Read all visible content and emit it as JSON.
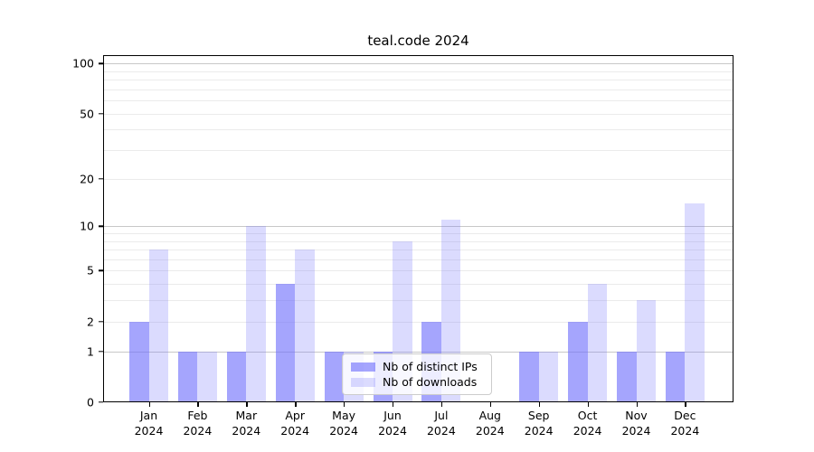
{
  "title": "teal.code 2024",
  "y_axis": {
    "tick_labels": [
      "0",
      "1",
      "2",
      "5",
      "10",
      "20",
      "50",
      "100"
    ],
    "tick_values": [
      0,
      1,
      2,
      5,
      10,
      20,
      50,
      100
    ]
  },
  "months": [
    {
      "label": "Jan",
      "year": "2024"
    },
    {
      "label": "Feb",
      "year": "2024"
    },
    {
      "label": "Mar",
      "year": "2024"
    },
    {
      "label": "Apr",
      "year": "2024"
    },
    {
      "label": "May",
      "year": "2024"
    },
    {
      "label": "Jun",
      "year": "2024"
    },
    {
      "label": "Jul",
      "year": "2024"
    },
    {
      "label": "Aug",
      "year": "2024"
    },
    {
      "label": "Sep",
      "year": "2024"
    },
    {
      "label": "Oct",
      "year": "2024"
    },
    {
      "label": "Nov",
      "year": "2024"
    },
    {
      "label": "Dec",
      "year": "2024"
    }
  ],
  "legend": {
    "items": [
      {
        "label": "Nb of distinct IPs"
      },
      {
        "label": "Nb of downloads"
      }
    ]
  },
  "colors": {
    "bar_distinct_ips": "rgba(110,110,252,0.62)",
    "bar_downloads": "rgba(110,110,252,0.25)",
    "grid_major": "#c8c8c8",
    "grid_minor": "#ebebeb",
    "axis": "#000000",
    "legend_border": "#cccccc",
    "legend_background": "rgba(255,255,255,0.8)"
  },
  "chart_data": {
    "type": "bar",
    "title": "teal.code 2024",
    "categories": [
      "Jan 2024",
      "Feb 2024",
      "Mar 2024",
      "Apr 2024",
      "May 2024",
      "Jun 2024",
      "Jul 2024",
      "Aug 2024",
      "Sep 2024",
      "Oct 2024",
      "Nov 2024",
      "Dec 2024"
    ],
    "series": [
      {
        "name": "Nb of distinct IPs",
        "values": [
          2,
          1,
          1,
          4,
          1,
          1,
          2,
          0,
          1,
          2,
          1,
          1
        ]
      },
      {
        "name": "Nb of downloads",
        "values": [
          7,
          1,
          10,
          7,
          1,
          8,
          11,
          0,
          1,
          4,
          3,
          14
        ]
      }
    ],
    "xlabel": "",
    "ylabel": "",
    "yscale": "log1p",
    "ylim": [
      0,
      112
    ],
    "ytick_values": [
      0,
      1,
      2,
      5,
      10,
      20,
      50,
      100
    ],
    "major_gridlines": [
      1,
      10,
      100
    ],
    "minor_gridlines": [
      2,
      3,
      4,
      5,
      6,
      7,
      8,
      9,
      20,
      30,
      40,
      50,
      60,
      70,
      80,
      90
    ],
    "grid": true,
    "legend_position": "inside lower-center"
  }
}
